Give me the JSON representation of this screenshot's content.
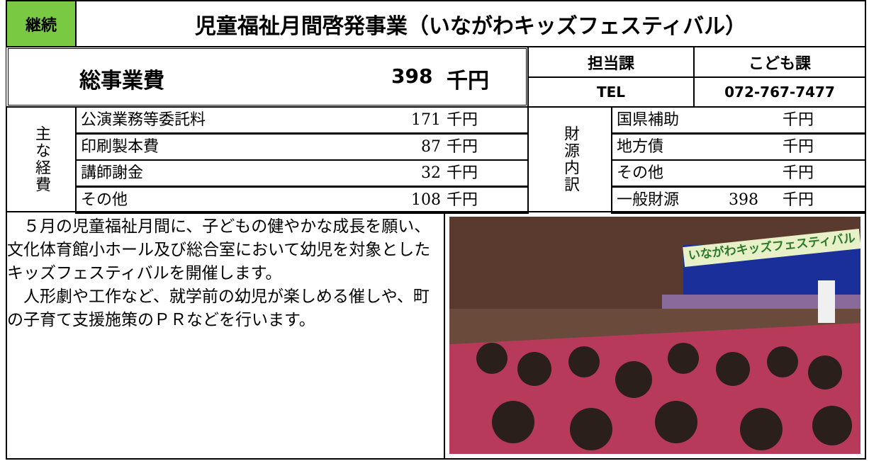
{
  "header": {
    "status": "継続",
    "title": "児童福祉月間啓発事業（いながわキッズフェスティバル）"
  },
  "total": {
    "label": "総事業費",
    "amount": 398,
    "unit": "千円"
  },
  "contact": {
    "department_label": "担当課",
    "department": "こども課",
    "tel_label": "TEL",
    "tel": "072-767-7477"
  },
  "expenses": {
    "label": "主な経費",
    "items": [
      {
        "name": "公演業務等委託料",
        "amount": 171,
        "unit": "千円"
      },
      {
        "name": "印刷製本費",
        "amount": 87,
        "unit": "千円"
      },
      {
        "name": "講師謝金",
        "amount": 32,
        "unit": "千円"
      },
      {
        "name": "その他",
        "amount": 108,
        "unit": "千円"
      }
    ]
  },
  "funding": {
    "label": "財源内訳",
    "items": [
      {
        "name": "国県補助",
        "unit": "千円"
      },
      {
        "name": "地方債",
        "unit": "千円"
      },
      {
        "name": "その他",
        "unit": "千円"
      },
      {
        "name": "一般財源",
        "amount": 398,
        "unit": "千円"
      }
    ]
  },
  "description": [
    "５月の児童福祉月間に、子どもの健やかな成長を願い、文化体育館小ホール及び総合室において幼児を対象としたキッズフェスティバルを開催します。",
    "人形劇や工作など、就学前の幼児が楽しめる催しや、町の子育て支援施策のＰＲなどを行います。"
  ],
  "photo": {
    "banner": "いながわキッズフェスティバル"
  }
}
